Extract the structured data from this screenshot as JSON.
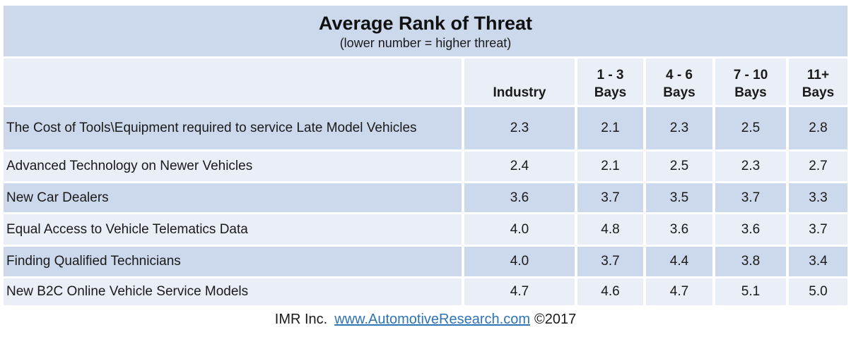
{
  "slide": {
    "title": "Average Rank of Threat",
    "subtitle": "(lower number = higher threat)",
    "footer": {
      "org": "IMR Inc.",
      "link": "www.AutomotiveResearch.com",
      "copyright": "©2017"
    },
    "colors": {
      "band_dark": "#ccd9ec",
      "band_light": "#e9eef7",
      "link_blue": "#2e74b5",
      "text": "#1a1a1a"
    }
  },
  "chart_data": {
    "type": "table",
    "title": "Average Rank of Threat",
    "subtitle": "(lower number = higher threat)",
    "columns": [
      "Industry",
      "1 - 3 Bays",
      "4 - 6 Bays",
      "7 - 10 Bays",
      "11+ Bays"
    ],
    "headers": [
      {
        "line1": "",
        "line2": "Industry"
      },
      {
        "line1": "1 - 3",
        "line2": "Bays"
      },
      {
        "line1": "4 - 6",
        "line2": "Bays"
      },
      {
        "line1": "7 - 10",
        "line2": "Bays"
      },
      {
        "line1": "11+",
        "line2": "Bays"
      }
    ],
    "rows": [
      {
        "label": "The Cost of Tools\\Equipment required to service Late Model Vehicles",
        "values": [
          "2.3",
          "2.1",
          "2.3",
          "2.5",
          "2.8"
        ]
      },
      {
        "label": "Advanced Technology on Newer Vehicles",
        "values": [
          "2.4",
          "2.1",
          "2.5",
          "2.3",
          "2.7"
        ]
      },
      {
        "label": "New Car Dealers",
        "values": [
          "3.6",
          "3.7",
          "3.5",
          "3.7",
          "3.3"
        ]
      },
      {
        "label": "Equal Access to Vehicle Telematics Data",
        "values": [
          "4.0",
          "4.8",
          "3.6",
          "3.6",
          "3.7"
        ]
      },
      {
        "label": "Finding Qualified Technicians",
        "values": [
          "4.0",
          "3.7",
          "4.4",
          "3.8",
          "3.4"
        ]
      },
      {
        "label": "New B2C Online Vehicle Service Models",
        "values": [
          "4.7",
          "4.6",
          "4.7",
          "5.1",
          "5.0"
        ]
      }
    ]
  }
}
